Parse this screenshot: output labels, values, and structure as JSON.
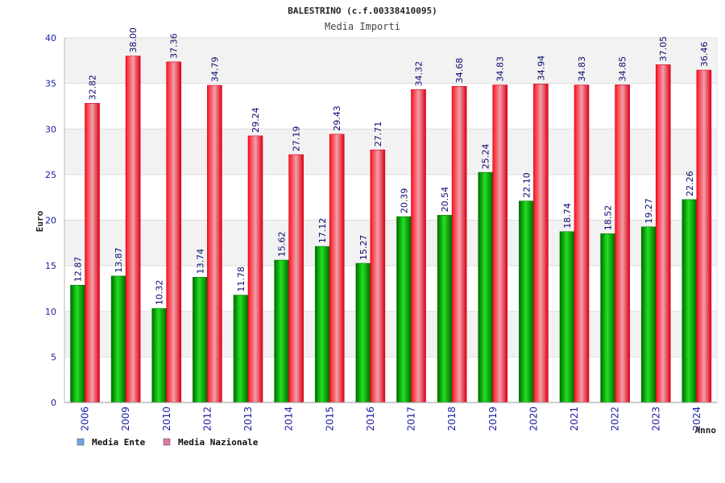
{
  "chart_data": {
    "type": "bar",
    "title": "BALESTRINO (c.f.00338410095)",
    "subtitle": "Media Importi",
    "xlabel": "Anno",
    "ylabel": "Euro",
    "ylim": [
      0,
      40
    ],
    "yticks": [
      "0",
      "5",
      "10",
      "15",
      "20",
      "25",
      "30",
      "35",
      "40"
    ],
    "grid": true,
    "legend_position": "bottom-left",
    "categories": [
      "2006",
      "2009",
      "2010",
      "2012",
      "2013",
      "2014",
      "2015",
      "2016",
      "2017",
      "2018",
      "2019",
      "2020",
      "2021",
      "2022",
      "2023",
      "2024"
    ],
    "series": [
      {
        "name": "Media Ente",
        "color": "#00b000",
        "legend_color": "#6aa8e8",
        "values": [
          12.87,
          13.87,
          10.32,
          13.74,
          11.78,
          15.62,
          17.12,
          15.27,
          20.39,
          20.54,
          25.24,
          22.1,
          18.74,
          18.52,
          19.27,
          22.26
        ],
        "labels": [
          "12.87",
          "13.87",
          "10.32",
          "13.74",
          "11.78",
          "15.62",
          "17.12",
          "15.27",
          "20.39",
          "20.54",
          "25.24",
          "22.10",
          "18.74",
          "18.52",
          "19.27",
          "22.26"
        ]
      },
      {
        "name": "Media Nazionale",
        "color": "#e8102a",
        "legend_color": "#e07aa8",
        "values": [
          32.82,
          38.0,
          37.36,
          34.79,
          29.24,
          27.19,
          29.43,
          27.71,
          34.32,
          34.68,
          34.83,
          34.94,
          34.83,
          34.85,
          37.05,
          36.46
        ],
        "labels": [
          "32.82",
          "38.00",
          "37.36",
          "34.79",
          "29.24",
          "27.19",
          "29.43",
          "27.71",
          "34.32",
          "34.68",
          "34.83",
          "34.94",
          "34.83",
          "34.85",
          "37.05",
          "36.46"
        ]
      }
    ]
  }
}
